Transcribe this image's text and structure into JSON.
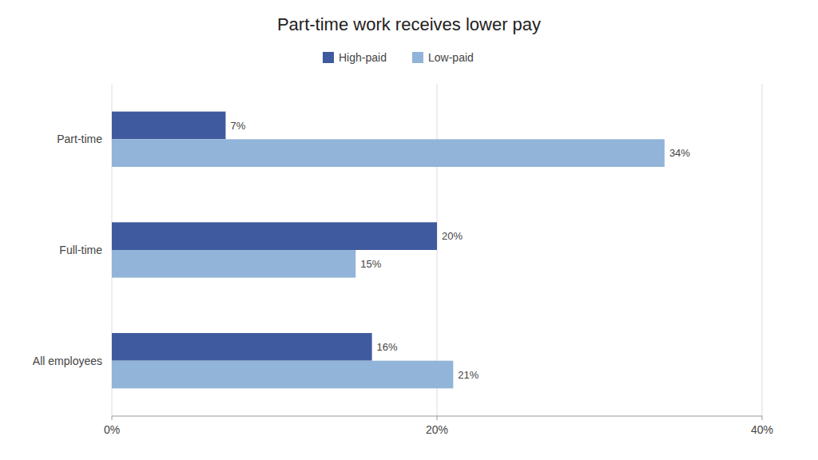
{
  "chart_data": {
    "type": "bar",
    "orientation": "horizontal",
    "title": "Part-time work receives lower pay",
    "categories": [
      "Part-time",
      "Full-time",
      "All employees"
    ],
    "series": [
      {
        "name": "High-paid",
        "color": "#3F5A9E",
        "values": [
          7,
          20,
          16
        ],
        "value_labels": [
          "7%",
          "20%",
          "16%"
        ]
      },
      {
        "name": "Low-paid",
        "color": "#92B4D9",
        "values": [
          34,
          15,
          21
        ],
        "value_labels": [
          "34%",
          "15%",
          "21%"
        ]
      }
    ],
    "xlim": [
      0,
      40
    ],
    "xticks": [
      {
        "value": 0,
        "label": "0%"
      },
      {
        "value": 20,
        "label": "20%"
      },
      {
        "value": 40,
        "label": "40%"
      }
    ],
    "grid": true,
    "legend": "top",
    "data_labels": true
  }
}
